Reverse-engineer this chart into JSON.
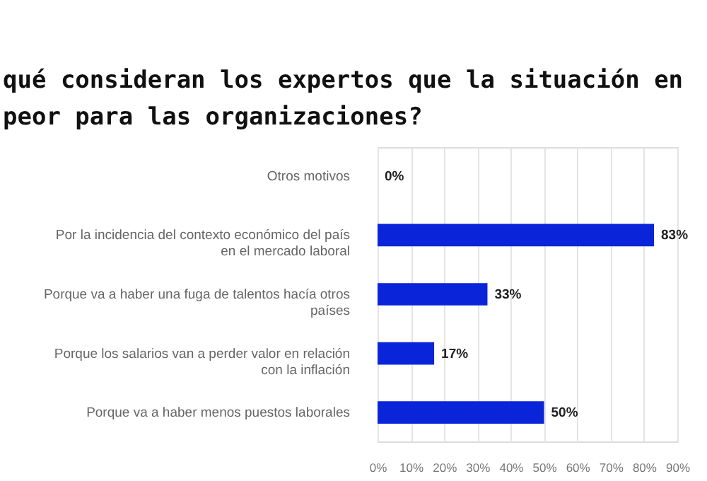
{
  "chart_data": {
    "type": "bar",
    "orientation": "horizontal",
    "title": "qué consideran los expertos que la situación en\npeor para las organizaciones?",
    "categories": [
      "Otros motivos",
      "Por la incidencia del contexto económico del país\nen el mercado laboral",
      "Porque va a haber una fuga de talentos hacía otros\npaíses",
      "Porque los salarios van a perder valor en relación\ncon la inflación",
      "Porque va a haber menos puestos laborales"
    ],
    "values": [
      0,
      83,
      33,
      17,
      50
    ],
    "color": "#0a24d9",
    "value_labels": [
      "0%",
      "83%",
      "33%",
      "17%",
      "50%"
    ],
    "xlim": [
      0,
      90
    ],
    "xticks": [
      {
        "value": 0,
        "label": "0%"
      },
      {
        "value": 10,
        "label": "10%"
      },
      {
        "value": 20,
        "label": "20%"
      },
      {
        "value": 30,
        "label": "30%"
      },
      {
        "value": 40,
        "label": "40%"
      },
      {
        "value": 50,
        "label": "50%"
      },
      {
        "value": 60,
        "label": "60%"
      },
      {
        "value": 70,
        "label": "70%"
      },
      {
        "value": 80,
        "label": "80%"
      },
      {
        "value": 90,
        "label": "90%"
      }
    ],
    "grid": "x"
  }
}
